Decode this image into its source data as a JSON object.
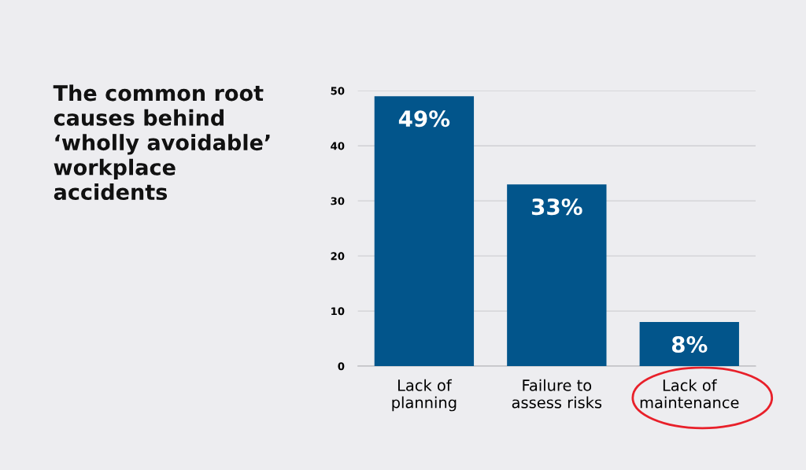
{
  "chart_data": {
    "type": "bar",
    "title": "The common root\ncauses behind\n‘wholly avoidable’\nworkplace\naccidents",
    "categories": [
      "Lack of\nplanning",
      "Failure to\nassess risks",
      "Lack of\nmaintenance"
    ],
    "values": [
      49,
      33,
      8
    ],
    "value_labels": [
      "49%",
      "33%",
      "8%"
    ],
    "color": "#02558b",
    "ylim": [
      0,
      50
    ],
    "yticks": [
      0,
      10,
      20,
      30,
      40,
      50
    ],
    "grid": "y"
  }
}
